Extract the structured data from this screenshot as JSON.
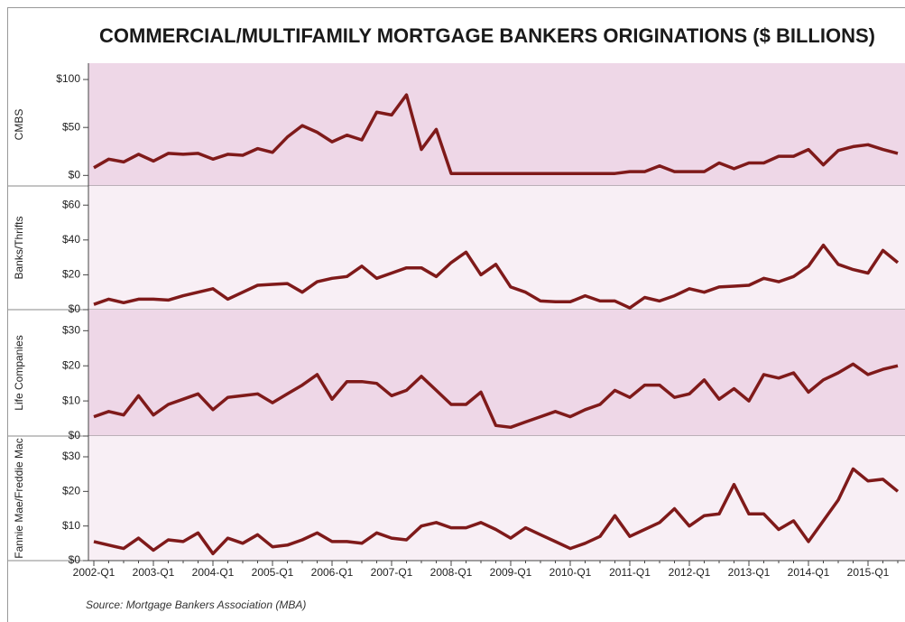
{
  "title": "COMMERCIAL/MULTIFAMILY MORTGAGE BANKERS ORIGINATIONS ($ BILLIONS)",
  "source": "Source: Mortgage Bankers Association (MBA)",
  "chart_data": [
    {
      "type": "line",
      "ylabel": "CMBS",
      "color": "#7f1a1a",
      "ylim": [
        -11,
        117
      ],
      "yticks": [
        {
          "value": 0,
          "label": "$0"
        },
        {
          "value": 50,
          "label": "$50"
        },
        {
          "value": 100,
          "label": "$100"
        }
      ],
      "values": [
        8,
        17,
        14,
        22,
        15,
        23,
        22,
        23,
        17,
        22,
        21,
        28,
        24,
        40,
        52,
        45,
        35,
        42,
        37,
        66,
        63,
        84,
        27,
        48,
        2,
        2,
        2,
        2,
        2,
        2,
        2,
        2,
        2,
        2,
        2,
        2,
        4,
        4,
        10,
        4,
        4,
        4,
        13,
        7,
        13,
        13,
        20,
        20,
        27,
        11,
        26,
        30,
        32,
        27,
        23
      ]
    },
    {
      "type": "line",
      "ylabel": "Banks/Thrifts",
      "color": "#7f1a1a",
      "ylim": [
        0,
        71
      ],
      "yticks": [
        {
          "value": 0,
          "label": "$0"
        },
        {
          "value": 20,
          "label": "$20"
        },
        {
          "value": 40,
          "label": "$40"
        },
        {
          "value": 60,
          "label": "$60"
        }
      ],
      "values": [
        3,
        6,
        4,
        6,
        6,
        5.5,
        8,
        10,
        12,
        6,
        10,
        14,
        14.5,
        15,
        10,
        16,
        18,
        19,
        25,
        18,
        21,
        24,
        24,
        19,
        27,
        33,
        20,
        26,
        13,
        10,
        5,
        4.5,
        4.5,
        8,
        5,
        5,
        1,
        7,
        5,
        8,
        12,
        10,
        13,
        13.5,
        14,
        18,
        16,
        19,
        25,
        37,
        26,
        23,
        21,
        34,
        27
      ]
    },
    {
      "type": "line",
      "ylabel": "Life Companies",
      "color": "#7f1a1a",
      "ylim": [
        0,
        36
      ],
      "yticks": [
        {
          "value": 0,
          "label": "$0"
        },
        {
          "value": 10,
          "label": "$10"
        },
        {
          "value": 20,
          "label": "$20"
        },
        {
          "value": 30,
          "label": "$30"
        }
      ],
      "values": [
        5.5,
        7,
        6,
        11.5,
        6,
        9,
        10.5,
        12,
        7.5,
        11,
        11.5,
        12,
        9.5,
        12,
        14.5,
        17.5,
        10.5,
        15.5,
        15.5,
        15,
        11.5,
        13,
        17,
        13,
        9,
        9,
        12.5,
        3,
        2.5,
        4,
        5.5,
        7,
        5.5,
        7.5,
        9,
        13,
        11,
        14.5,
        14.5,
        11,
        12,
        16,
        10.5,
        13.5,
        10,
        17.5,
        16.5,
        18,
        12.5,
        16,
        18,
        20.5,
        17.5,
        19,
        20
      ]
    },
    {
      "type": "line",
      "ylabel": "Fannie Mae/Freddie Mac",
      "color": "#7f1a1a",
      "ylim": [
        0,
        36
      ],
      "yticks": [
        {
          "value": 0,
          "label": "$0"
        },
        {
          "value": 10,
          "label": "$10"
        },
        {
          "value": 20,
          "label": "$20"
        },
        {
          "value": 30,
          "label": "$30"
        }
      ],
      "categories": [
        "2002-Q1",
        null,
        null,
        null,
        "2003-Q1",
        null,
        null,
        null,
        "2004-Q1",
        null,
        null,
        null,
        "2005-Q1",
        null,
        null,
        null,
        "2006-Q1",
        null,
        null,
        null,
        "2007-Q1",
        null,
        null,
        null,
        "2008-Q1",
        null,
        null,
        null,
        "2009-Q1",
        null,
        null,
        null,
        "2010-Q1",
        null,
        null,
        null,
        "2011-Q1",
        null,
        null,
        null,
        "2012-Q1",
        null,
        null,
        null,
        "2013-Q1",
        null,
        null,
        null,
        "2014-Q1",
        null,
        null,
        null,
        "2015-Q1",
        null,
        null
      ],
      "values": [
        5.5,
        4.5,
        3.5,
        6.5,
        3,
        6,
        5.5,
        8,
        2,
        6.5,
        5,
        7.5,
        4,
        4.5,
        6,
        8,
        5.5,
        5.5,
        5,
        8,
        6.5,
        6,
        10,
        11,
        9.5,
        9.5,
        11,
        9,
        6.5,
        9.5,
        7.5,
        5.5,
        3.5,
        5,
        7,
        13,
        7,
        9,
        11,
        15,
        10,
        13,
        13.5,
        22,
        13.5,
        13.5,
        9,
        11.5,
        5.5,
        11.5,
        17.5,
        26.5,
        23,
        23.5,
        20
      ]
    }
  ]
}
